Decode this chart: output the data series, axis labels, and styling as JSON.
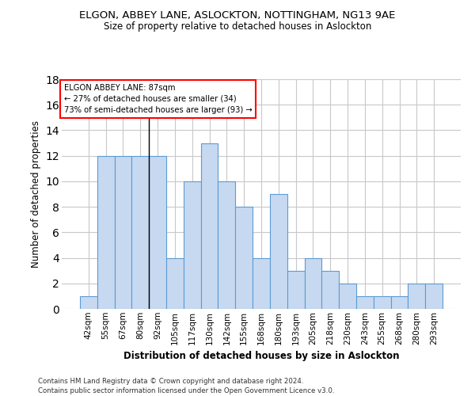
{
  "title": "ELGON, ABBEY LANE, ASLOCKTON, NOTTINGHAM, NG13 9AE",
  "subtitle": "Size of property relative to detached houses in Aslockton",
  "xlabel": "Distribution of detached houses by size in Aslockton",
  "ylabel": "Number of detached properties",
  "categories": [
    "42sqm",
    "55sqm",
    "67sqm",
    "80sqm",
    "92sqm",
    "105sqm",
    "117sqm",
    "130sqm",
    "142sqm",
    "155sqm",
    "168sqm",
    "180sqm",
    "193sqm",
    "205sqm",
    "218sqm",
    "230sqm",
    "243sqm",
    "255sqm",
    "268sqm",
    "280sqm",
    "293sqm"
  ],
  "values": [
    1,
    12,
    12,
    12,
    12,
    4,
    10,
    13,
    10,
    8,
    4,
    9,
    3,
    4,
    3,
    2,
    1,
    1,
    1,
    2,
    2
  ],
  "bar_color": "#c7d9f0",
  "bar_edge_color": "#5b9bd5",
  "ylim": [
    0,
    18
  ],
  "yticks": [
    0,
    2,
    4,
    6,
    8,
    10,
    12,
    14,
    16,
    18
  ],
  "vline_x": 3.5,
  "annotation_text_line1": "ELGON ABBEY LANE: 87sqm",
  "annotation_text_line2": "← 27% of detached houses are smaller (34)",
  "annotation_text_line3": "73% of semi-detached houses are larger (93) →",
  "footer_line1": "Contains HM Land Registry data © Crown copyright and database right 2024.",
  "footer_line2": "Contains public sector information licensed under the Open Government Licence v3.0.",
  "background_color": "#ffffff",
  "grid_color": "#c8c8c8"
}
